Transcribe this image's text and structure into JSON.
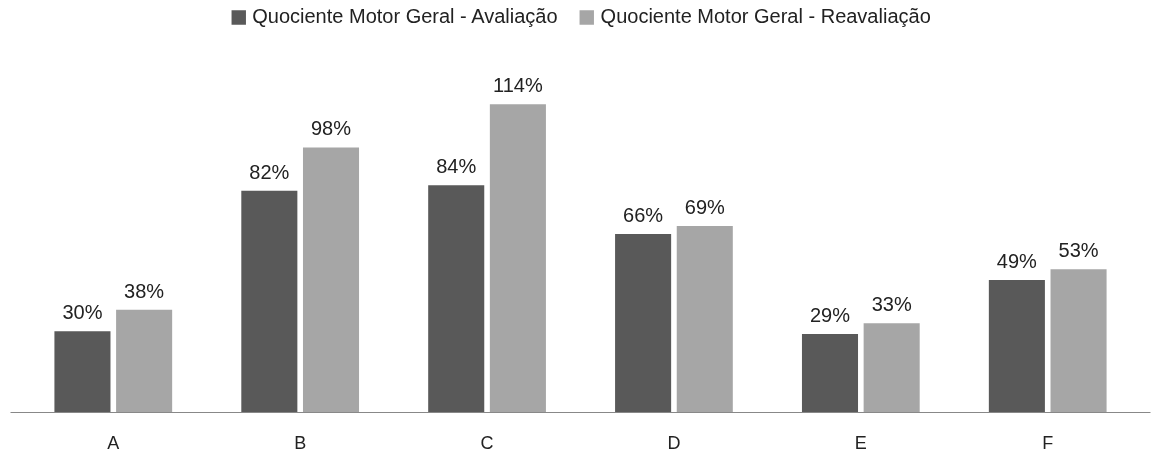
{
  "chart_data": {
    "type": "bar",
    "categories": [
      "A",
      "B",
      "C",
      "D",
      "E",
      "F"
    ],
    "series": [
      {
        "name": "Quociente Motor Geral - Avaliação",
        "color": "#595959",
        "values": [
          30,
          82,
          84,
          66,
          29,
          49
        ],
        "value_labels": [
          "30%",
          "82%",
          "84%",
          "66%",
          "29%",
          "49%"
        ]
      },
      {
        "name": "Quociente Motor Geral - Reavaliação",
        "color": "#a6a6a6",
        "values": [
          38,
          98,
          114,
          69,
          33,
          53
        ],
        "value_labels": [
          "38%",
          "98%",
          "114%",
          "69%",
          "33%",
          "53%"
        ]
      }
    ],
    "legend": "top",
    "grid": false,
    "tick_labels": "x"
  }
}
